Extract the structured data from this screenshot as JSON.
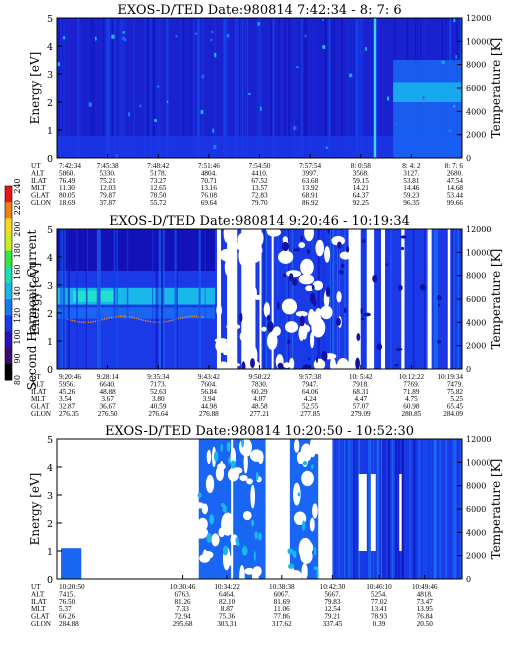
{
  "chart_data": [
    {
      "type": "heatmap",
      "title": "EXOS-D/TED   Date:980814  7:42:34 - 8: 7: 6",
      "ylabel": "Energy [eV]",
      "y2label": "Temperature [K]",
      "ylim": [
        0,
        5
      ],
      "y2lim": [
        0,
        12000
      ],
      "yticks": [
        "0",
        "1",
        "2",
        "3",
        "4",
        "5"
      ],
      "y2ticks": [
        "0",
        "2000",
        "4000",
        "6000",
        "8000",
        "10000",
        "12000"
      ],
      "data_pattern": "mostly-saturated-blue",
      "table": {
        "rows": [
          {
            "label": "UT",
            "values": [
              "7:42:34",
              "7:45:38",
              "7:48:42",
              "7:51:46",
              "7:54:50",
              "7:57:54",
              "8: 0:58",
              "8: 4: 2",
              "8: 7: 6"
            ]
          },
          {
            "label": "ALT",
            "values": [
              "5860.",
              "5330.",
              "5178.",
              "4804.",
              "4410.",
              "3997.",
              "3568.",
              "3127.",
              "2680."
            ]
          },
          {
            "label": "ILAT",
            "values": [
              "76.49",
              "75.21",
              "73.27",
              "70.71",
              "67.52",
              "63.68",
              "59.15",
              "53.81",
              "47.54"
            ]
          },
          {
            "label": "MLT",
            "values": [
              "11.30",
              "12.03",
              "12.65",
              "13.16",
              "13.57",
              "13.92",
              "14.21",
              "14.46",
              "14.68"
            ]
          },
          {
            "label": "GLAT",
            "values": [
              "80.05",
              "79.87",
              "78.50",
              "76.08",
              "72.83",
              "68.91",
              "64.37",
              "59.23",
              "53.44"
            ]
          },
          {
            "label": "GLON",
            "values": [
              "18.69",
              "37.87",
              "55.72",
              "69.64",
              "79.70",
              "86.92",
              "92.25",
              "96.35",
              "99.66"
            ]
          }
        ]
      }
    },
    {
      "type": "heatmap",
      "title": "EXOS-D/TED   Date:980814  9:20:46 - 10:19:34",
      "ylabel": "Energy [eV]",
      "y2label": "Temperature [K]",
      "ylim": [
        0,
        5
      ],
      "y2lim": [
        0,
        12000
      ],
      "yticks": [
        "0",
        "1",
        "2",
        "3",
        "4",
        "5"
      ],
      "y2ticks": [
        "0",
        "2000",
        "4000",
        "6000",
        "8000",
        "10000",
        "12000"
      ],
      "data_pattern": "blue-with-white-gaps",
      "colorbar": {
        "label": "Second Harmonic Current",
        "ticks": [
          "80",
          "90",
          "100",
          "120",
          "140",
          "160",
          "180",
          "200",
          "220",
          "240"
        ],
        "colors": [
          "#000000",
          "#3a0a70",
          "#2a12b8",
          "#1a3ae8",
          "#1a78f0",
          "#18b8e8",
          "#18e0b8",
          "#30e840",
          "#c8f018",
          "#f8d818",
          "#f08010",
          "#e81818"
        ]
      },
      "table": {
        "rows": [
          {
            "label": "UT",
            "values": [
              "9:20:46",
              "9:28:14",
              "9:35:34",
              "9:43:42",
              "9:50:22",
              "9:57:38",
              "10: 5:42",
              "10:12:22",
              "10:19:34"
            ]
          },
          {
            "label": "ALT",
            "values": [
              "5956.",
              "6640.",
              "7173.",
              "7604.",
              "7830.",
              "7947.",
              "7918.",
              "7769.",
              "7479."
            ]
          },
          {
            "label": "ILAT",
            "values": [
              "45.26",
              "48.88",
              "52.63",
              "56.84",
              "60.29",
              "64.06",
              "68.31",
              "71.89",
              "75.82"
            ]
          },
          {
            "label": "MLT",
            "values": [
              "3.54",
              "3.67",
              "3.80",
              "3.94",
              "4.07",
              "4.24",
              "4.47",
              "4.75",
              "5.25"
            ]
          },
          {
            "label": "GLAT",
            "values": [
              "32.87",
              "36.67",
              "40.59",
              "44.98",
              "48.58",
              "52.55",
              "57.07",
              "60.98",
              "65.45"
            ]
          },
          {
            "label": "GLON",
            "values": [
              "276.35",
              "276.50",
              "276.64",
              "276.88",
              "277.21",
              "277.85",
              "279.09",
              "280.85",
              "284.09"
            ]
          }
        ]
      }
    },
    {
      "type": "heatmap",
      "title": "EXOS-D/TED   Date:980814  10:20:50 - 10:52:30",
      "ylabel": "Energy [eV]",
      "y2label": "Temperature [K]",
      "ylim": [
        0,
        5
      ],
      "y2lim": [
        0,
        12000
      ],
      "yticks": [
        "0",
        "1",
        "2",
        "3",
        "4",
        "5"
      ],
      "y2ticks": [
        "0",
        "2000",
        "4000",
        "6000",
        "8000",
        "10000",
        "12000"
      ],
      "data_pattern": "sparse-blocks",
      "table": {
        "rows": [
          {
            "label": "UT",
            "values": [
              "10:20:50",
              "10:30:46",
              "10:34:22",
              "10:38:38",
              "10:42:30",
              "10:46:10",
              "10:49:46"
            ]
          },
          {
            "label": "ALT",
            "values": [
              "7415.",
              "6763.",
              "6464.",
              "6067.",
              "5667.",
              "5254.",
              "4818."
            ]
          },
          {
            "label": "ILAT",
            "values": [
              "76.50",
              "81.26",
              "82.10",
              "81.69",
              "79.83",
              "77.02",
              "73.47"
            ]
          },
          {
            "label": "MLT",
            "values": [
              "5.37",
              "7.33",
              "8.87",
              "11.06",
              "12.54",
              "13.41",
              "13.95"
            ]
          },
          {
            "label": "GLAT",
            "values": [
              "66.26",
              "72.94",
              "75.36",
              "77.86",
              "79.21",
              "78.93",
              "76.84"
            ]
          },
          {
            "label": "GLON",
            "values": [
              "284.88",
              "295.68",
              "303.31",
              "317.62",
              "337.45",
              "0.39",
              "20.50"
            ]
          }
        ]
      }
    }
  ]
}
